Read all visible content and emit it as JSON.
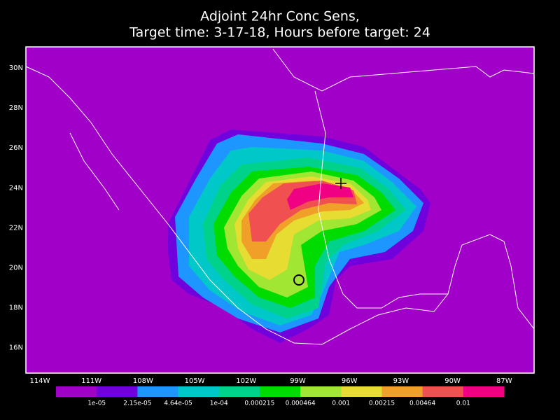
{
  "title": {
    "line1": "Adjoint 24hr Conc Sens,",
    "line2": "Target time: 3-17-18, Hours before target: 24"
  },
  "lat_labels": [
    "30N",
    "28N",
    "26N",
    "24N",
    "22N",
    "20N",
    "18N",
    "16N"
  ],
  "lon_labels": [
    "114W",
    "111W",
    "108W",
    "105W",
    "102W",
    "99W",
    "96W",
    "93W",
    "90W",
    "87W"
  ],
  "colorbar": {
    "labels": [
      "1e-05",
      "2.15e-05",
      "4.64e-05",
      "1e-04",
      "0.000215",
      "0.000464",
      "0.001",
      "0.00215",
      "0.00464",
      "0.01"
    ],
    "colors": [
      "#a000c8",
      "#7000dc",
      "#1e96ff",
      "#00c8c8",
      "#00d28c",
      "#00dc00",
      "#a0e632",
      "#e6dc32",
      "#f0a028",
      "#f05050",
      "#f00082"
    ]
  }
}
